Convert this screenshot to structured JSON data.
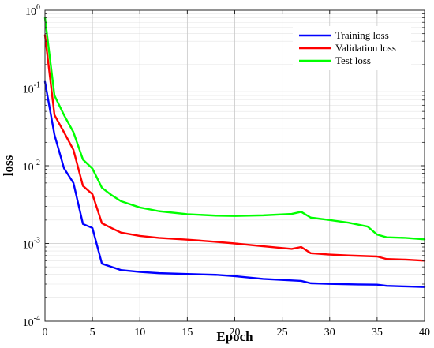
{
  "chart_data": {
    "type": "line",
    "title": "",
    "xlabel": "Epoch",
    "ylabel": "loss",
    "yscale": "log",
    "xlim": [
      0,
      40
    ],
    "ylim": [
      0.0001,
      1
    ],
    "grid": true,
    "legend_position": "top-right",
    "x_ticks": [
      0,
      5,
      10,
      15,
      20,
      25,
      30,
      35,
      40
    ],
    "x_tick_labels": [
      "0",
      "5",
      "10",
      "15",
      "20",
      "25",
      "30",
      "35",
      "40"
    ],
    "y_ticks": [
      0.0001,
      0.001,
      0.01,
      0.1,
      1
    ],
    "y_tick_labels": [
      {
        "base": "10",
        "exp": "-4"
      },
      {
        "base": "10",
        "exp": "-3"
      },
      {
        "base": "10",
        "exp": "-2"
      },
      {
        "base": "10",
        "exp": "-1"
      },
      {
        "base": "10",
        "exp": "0"
      }
    ],
    "series": [
      {
        "name": "Training loss",
        "color": "#0000ff",
        "points": [
          [
            0,
            0.12
          ],
          [
            1,
            0.025
          ],
          [
            2,
            0.0093
          ],
          [
            3,
            0.006
          ],
          [
            4,
            0.00178
          ],
          [
            5,
            0.00158
          ],
          [
            6,
            0.00055
          ],
          [
            7,
            0.0005
          ],
          [
            8,
            0.000455
          ],
          [
            10,
            0.00043
          ],
          [
            12,
            0.000415
          ],
          [
            15,
            0.000405
          ],
          [
            18,
            0.000395
          ],
          [
            20,
            0.00038
          ],
          [
            23,
            0.00035
          ],
          [
            25,
            0.00034
          ],
          [
            27,
            0.00033
          ],
          [
            28,
            0.000308
          ],
          [
            30,
            0.000302
          ],
          [
            33,
            0.000297
          ],
          [
            35,
            0.000295
          ],
          [
            36,
            0.000285
          ],
          [
            38,
            0.00028
          ],
          [
            40,
            0.000275
          ]
        ]
      },
      {
        "name": "Validation loss",
        "color": "#ff0000",
        "points": [
          [
            0,
            0.48
          ],
          [
            1,
            0.045
          ],
          [
            2,
            0.027
          ],
          [
            3,
            0.016
          ],
          [
            4,
            0.0055
          ],
          [
            5,
            0.0043
          ],
          [
            6,
            0.00182
          ],
          [
            7,
            0.00158
          ],
          [
            8,
            0.00138
          ],
          [
            10,
            0.00125
          ],
          [
            12,
            0.00118
          ],
          [
            15,
            0.00112
          ],
          [
            18,
            0.00105
          ],
          [
            20,
            0.001
          ],
          [
            23,
            0.00092
          ],
          [
            26,
            0.00085
          ],
          [
            27,
            0.0009
          ],
          [
            28,
            0.00075
          ],
          [
            30,
            0.00072
          ],
          [
            32,
            0.0007
          ],
          [
            35,
            0.00068
          ],
          [
            36,
            0.00063
          ],
          [
            38,
            0.00062
          ],
          [
            40,
            0.0006
          ]
        ]
      },
      {
        "name": "Test loss",
        "color": "#00ff00",
        "points": [
          [
            0,
            0.8
          ],
          [
            1,
            0.08
          ],
          [
            2,
            0.045
          ],
          [
            3,
            0.027
          ],
          [
            4,
            0.012
          ],
          [
            5,
            0.0092
          ],
          [
            6,
            0.0052
          ],
          [
            7,
            0.0042
          ],
          [
            8,
            0.0035
          ],
          [
            10,
            0.0029
          ],
          [
            12,
            0.0026
          ],
          [
            15,
            0.00238
          ],
          [
            18,
            0.00228
          ],
          [
            20,
            0.00226
          ],
          [
            23,
            0.0023
          ],
          [
            26,
            0.0024
          ],
          [
            27,
            0.00255
          ],
          [
            28,
            0.00215
          ],
          [
            30,
            0.002
          ],
          [
            32,
            0.00185
          ],
          [
            34,
            0.00165
          ],
          [
            35,
            0.0013
          ],
          [
            36,
            0.0012
          ],
          [
            38,
            0.00118
          ],
          [
            40,
            0.00113
          ]
        ]
      }
    ]
  }
}
